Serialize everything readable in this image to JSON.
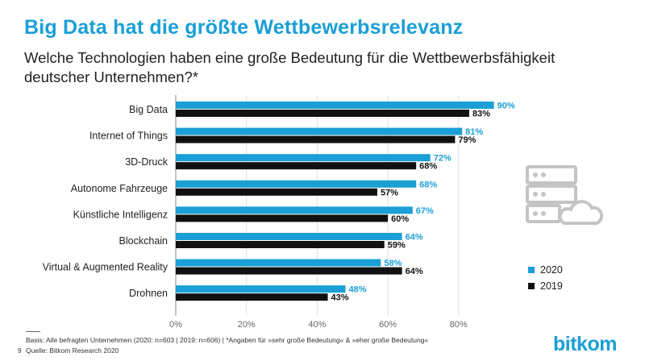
{
  "header": {
    "title": "Big Data hat die größte Wettbewerbsrelevanz",
    "subtitle": "Welche Technologien haben eine große Bedeutung für die Wettbewerbsfähigkeit deutscher Unternehmen?*"
  },
  "chart_data": {
    "type": "bar",
    "orientation": "horizontal",
    "categories": [
      "Big Data",
      "Internet of Things",
      "3D-Druck",
      "Autonome Fahrzeuge",
      "Künstliche Intelligenz",
      "Blockchain",
      "Virtual & Augmented Reality",
      "Drohnen"
    ],
    "series": [
      {
        "name": "2020",
        "color": "#1a9fd6",
        "values": [
          90,
          81,
          72,
          68,
          67,
          64,
          58,
          48
        ]
      },
      {
        "name": "2019",
        "color": "#111111",
        "values": [
          83,
          79,
          68,
          57,
          60,
          59,
          64,
          43
        ]
      }
    ],
    "xlim": [
      0,
      90
    ],
    "ticks": [
      "0%",
      "20%",
      "40%",
      "60%",
      "80%"
    ],
    "value_suffix": "%",
    "legend_position": "right"
  },
  "legend": {
    "items": [
      {
        "label": "2020",
        "color": "#1a9fd6"
      },
      {
        "label": "2019",
        "color": "#111111"
      }
    ]
  },
  "footer": {
    "page": "9",
    "basis": "Basis: Alle befragten Unternehmen (2020: n=603 | 2019: n=606) | *Angaben für »sehr große Bedeutung« & »eher große Bedeutung«",
    "source": "Quelle: Bitkom Research 2020"
  },
  "logo": {
    "text": "bitkom"
  },
  "icons": {
    "decor": "server-cloud-icon"
  }
}
